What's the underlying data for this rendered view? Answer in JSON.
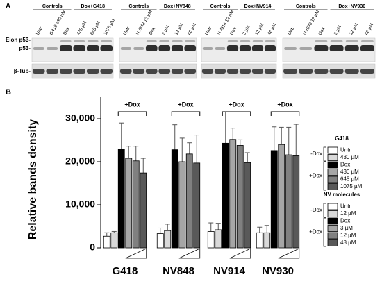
{
  "panel_a": {
    "label": "A",
    "row_labels": [
      "Elon p53-",
      "p53-",
      "β-Tub-"
    ],
    "groups": [
      {
        "headers": [
          "Controls",
          "Dox+G418"
        ],
        "lanes": [
          "Untr",
          "G418 430 µM",
          "Dox",
          "430 µM",
          "645 µM",
          "1075 µM"
        ]
      },
      {
        "headers": [
          "Controls",
          "Dox+NV848"
        ],
        "lanes": [
          "Untr",
          "NV848 12 µM",
          "Dox",
          "3 µM",
          "12 µM",
          "48 µM"
        ]
      },
      {
        "headers": [
          "Controls",
          "Dox+NV914"
        ],
        "lanes": [
          "Untr",
          "NV914 12 µM",
          "Dox",
          "3 µM",
          "12 µM",
          "48 µM"
        ]
      },
      {
        "headers": [
          "Controls",
          "Dox+NV930"
        ],
        "lanes": [
          "Untr",
          "NV930 12 µM",
          "Dox",
          "3 µM",
          "12 µM",
          "48 µM"
        ]
      }
    ]
  },
  "chart_data": {
    "label": "B",
    "type": "bar",
    "ylabel": "Relative bands density",
    "group_annotation": "+Dox",
    "categories": [
      "G418",
      "NV848",
      "NV914",
      "NV930"
    ],
    "series": [
      {
        "color": "#ffffff",
        "values": [
          2700,
          3300,
          3800,
          3500
        ],
        "errors": [
          800,
          1300,
          2000,
          1300
        ]
      },
      {
        "color": "#d9d9d9",
        "values": [
          3500,
          4000,
          4200,
          3500
        ],
        "errors": [
          300,
          1500,
          1500,
          1700
        ]
      },
      {
        "color": "#000000",
        "values": [
          23000,
          22800,
          24300,
          22600
        ],
        "errors": [
          6000,
          5800,
          7300,
          5500
        ]
      },
      {
        "color": "#a6a6a6",
        "values": [
          20800,
          20000,
          25200,
          24000
        ],
        "errors": [
          2800,
          5500,
          2600,
          4000
        ]
      },
      {
        "color": "#808080",
        "values": [
          20200,
          21800,
          23800,
          21600
        ],
        "errors": [
          3400,
          2600,
          1300,
          6400
        ]
      },
      {
        "color": "#595959",
        "values": [
          17400,
          19700,
          19800,
          21400
        ],
        "errors": [
          3400,
          6500,
          2300,
          7300
        ]
      }
    ],
    "ylim": [
      0,
      35000
    ],
    "yticks": [
      0,
      {
        "value": 10000,
        "label": "10,000"
      },
      {
        "value": 20000,
        "label": "20,000"
      },
      {
        "value": 30000,
        "label": "30,000"
      }
    ],
    "legends": [
      {
        "title": "G418",
        "minus_label": "-Dox",
        "plus_label": "+Dox",
        "entries": [
          "Untr",
          "430 µM",
          "Dox",
          "430 µM",
          "645 µM",
          "1075 µM"
        ]
      },
      {
        "title": "NV molecules",
        "minus_label": "-Dox",
        "plus_label": "+Dox",
        "entries": [
          "Untr",
          "12 µM",
          "Dox",
          "3 µM",
          "12 µM",
          "48 µM"
        ]
      }
    ]
  }
}
